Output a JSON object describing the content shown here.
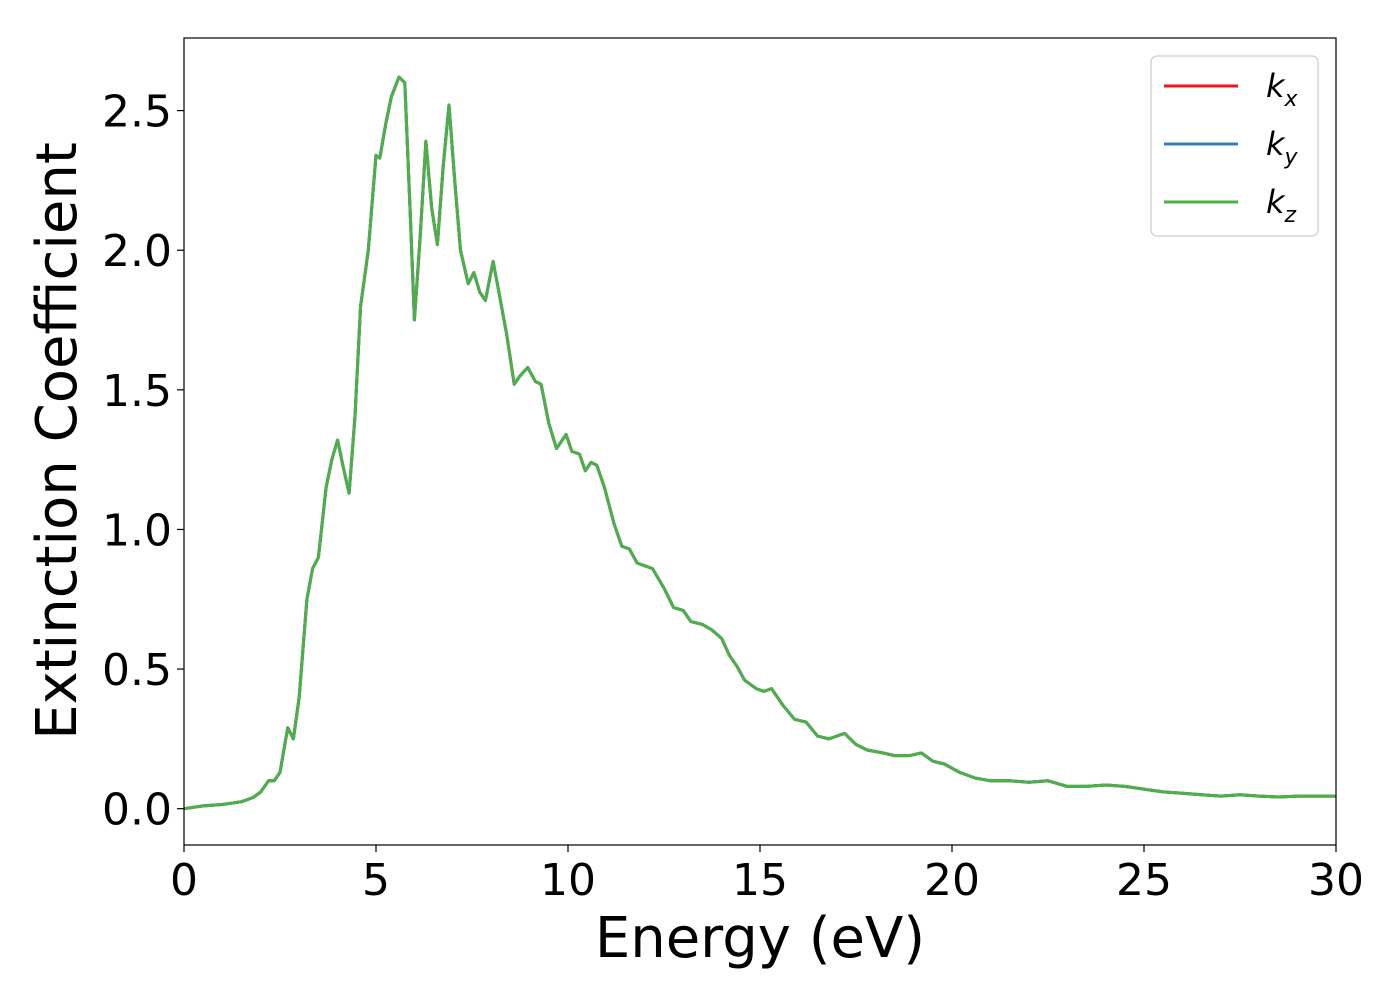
{
  "chart_data": {
    "type": "line",
    "xlabel": "Energy (eV)",
    "ylabel": "Extinction Coefficient",
    "xlim": [
      0,
      30
    ],
    "ylim": [
      -0.13,
      2.76
    ],
    "xticks": [
      0,
      5,
      10,
      15,
      20,
      25,
      30
    ],
    "xtick_labels": [
      "0",
      "5",
      "10",
      "15",
      "20",
      "25",
      "30"
    ],
    "yticks": [
      0.0,
      0.5,
      1.0,
      1.5,
      2.0,
      2.5
    ],
    "ytick_labels": [
      "0.0",
      "0.5",
      "1.0",
      "1.5",
      "2.0",
      "2.5"
    ],
    "grid": false,
    "legend_position": "top-right",
    "series": [
      {
        "name": "k",
        "subscript": "x",
        "color": "#e41a1c"
      },
      {
        "name": "k",
        "subscript": "y",
        "color": "#377eb8"
      },
      {
        "name": "k",
        "subscript": "z",
        "color": "#4daf4a"
      }
    ],
    "x": [
      0,
      0.5,
      1.0,
      1.5,
      1.8,
      2.0,
      2.2,
      2.35,
      2.5,
      2.7,
      2.85,
      3.0,
      3.2,
      3.35,
      3.5,
      3.7,
      3.85,
      4.0,
      4.15,
      4.3,
      4.45,
      4.6,
      4.8,
      5.0,
      5.1,
      5.25,
      5.4,
      5.6,
      5.75,
      5.9,
      6.0,
      6.15,
      6.3,
      6.45,
      6.6,
      6.75,
      6.9,
      7.05,
      7.2,
      7.4,
      7.55,
      7.7,
      7.85,
      8.05,
      8.2,
      8.4,
      8.6,
      8.75,
      8.95,
      9.15,
      9.3,
      9.5,
      9.7,
      9.95,
      10.1,
      10.3,
      10.45,
      10.6,
      10.75,
      10.95,
      11.2,
      11.4,
      11.6,
      11.8,
      12.0,
      12.2,
      12.5,
      12.75,
      13.0,
      13.2,
      13.5,
      13.75,
      14.0,
      14.2,
      14.4,
      14.6,
      14.9,
      15.1,
      15.3,
      15.6,
      15.9,
      16.2,
      16.5,
      16.8,
      17.0,
      17.2,
      17.5,
      17.8,
      18.2,
      18.5,
      18.9,
      19.2,
      19.5,
      19.8,
      20.2,
      20.6,
      21.0,
      21.5,
      22.0,
      22.5,
      23.0,
      23.5,
      24.0,
      24.5,
      25.0,
      25.5,
      26.0,
      26.5,
      27.0,
      27.5,
      28.0,
      28.5,
      29.0,
      29.5,
      30.0
    ],
    "values": [
      0.0,
      0.01,
      0.015,
      0.025,
      0.04,
      0.06,
      0.1,
      0.1,
      0.13,
      0.29,
      0.25,
      0.4,
      0.75,
      0.86,
      0.9,
      1.15,
      1.25,
      1.32,
      1.22,
      1.13,
      1.4,
      1.8,
      2.0,
      2.34,
      2.33,
      2.45,
      2.55,
      2.62,
      2.6,
      2.1,
      1.75,
      2.05,
      2.39,
      2.15,
      2.02,
      2.3,
      2.52,
      2.25,
      2.0,
      1.88,
      1.92,
      1.85,
      1.82,
      1.96,
      1.85,
      1.7,
      1.52,
      1.55,
      1.58,
      1.53,
      1.52,
      1.38,
      1.29,
      1.34,
      1.28,
      1.27,
      1.21,
      1.24,
      1.23,
      1.15,
      1.02,
      0.94,
      0.93,
      0.88,
      0.87,
      0.86,
      0.79,
      0.72,
      0.71,
      0.67,
      0.66,
      0.64,
      0.61,
      0.55,
      0.51,
      0.46,
      0.43,
      0.42,
      0.43,
      0.37,
      0.32,
      0.31,
      0.26,
      0.25,
      0.26,
      0.27,
      0.23,
      0.21,
      0.2,
      0.19,
      0.19,
      0.2,
      0.17,
      0.16,
      0.13,
      0.11,
      0.1,
      0.1,
      0.095,
      0.1,
      0.08,
      0.08,
      0.085,
      0.08,
      0.07,
      0.06,
      0.055,
      0.05,
      0.045,
      0.05,
      0.045,
      0.042,
      0.045,
      0.045,
      0.045
    ]
  }
}
